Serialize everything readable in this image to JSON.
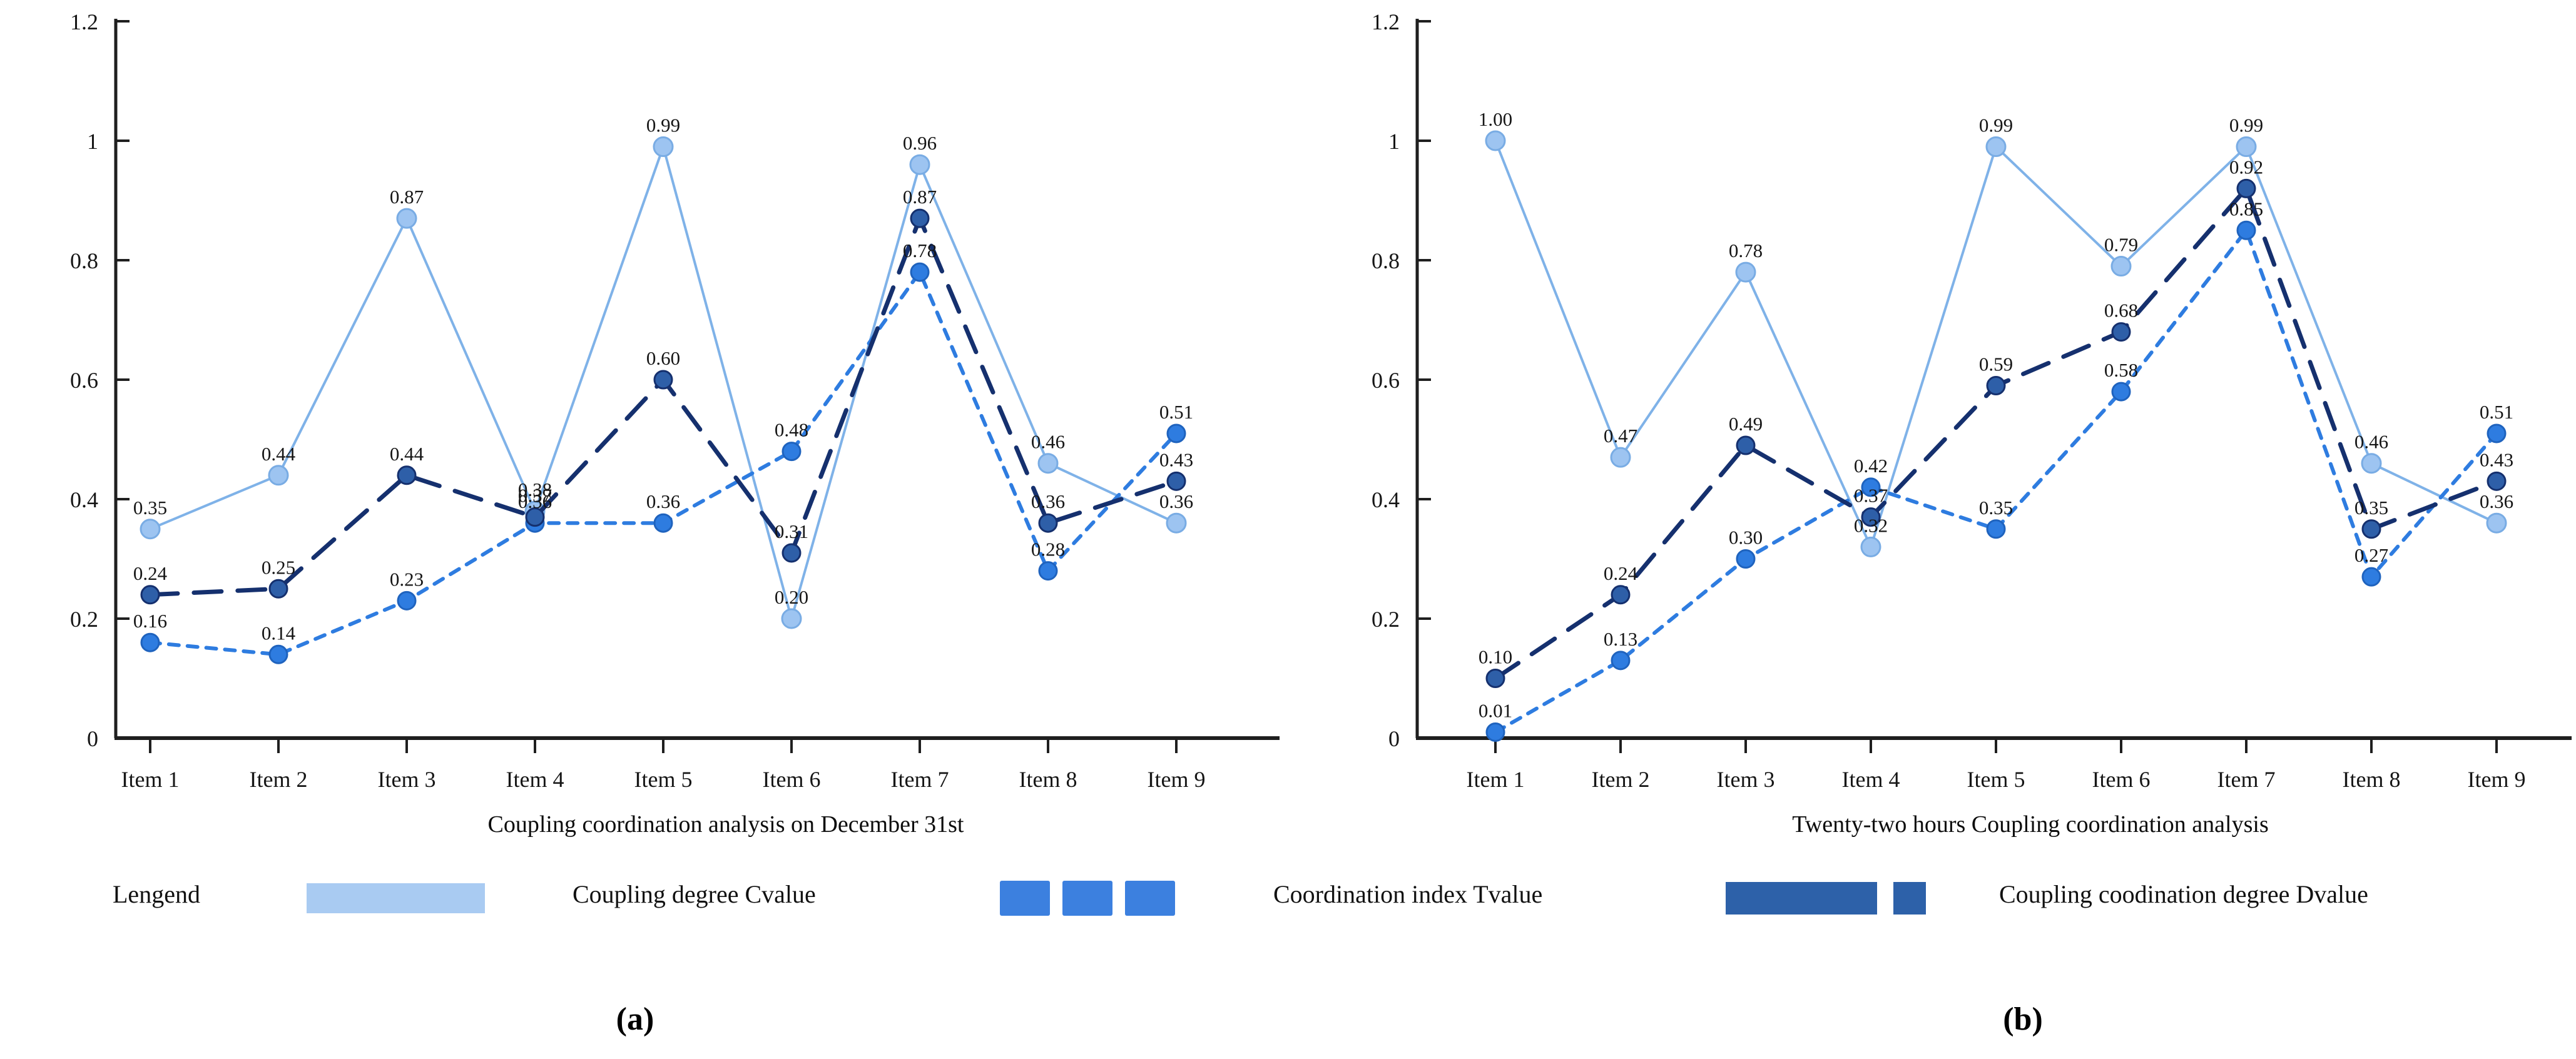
{
  "figure": {
    "panel_a_caption": "(a)",
    "panel_b_caption": "(b)"
  },
  "axis": {
    "ytick_labels": [
      "0",
      "0.2",
      "0.4",
      "0.6",
      "0.8",
      "1",
      "1.2"
    ]
  },
  "legend": {
    "title": "Lengend",
    "entries": [
      {
        "label": "Coupling degree Cvalue",
        "series": "C",
        "swatch": "solid-bar",
        "color": "#A9CBF2"
      },
      {
        "label": "Coordination index Tvalue",
        "series": "T",
        "swatch": "three-dashes",
        "color": "#3C80DF"
      },
      {
        "label": "Coupling coodination degree Dvalue",
        "series": "D",
        "swatch": "long-short-dash",
        "color": "#2D61A9"
      }
    ]
  },
  "chart_data": [
    {
      "id": "a",
      "type": "line",
      "xlabel": "Coupling coordination analysis on December 31st",
      "categories": [
        "Item 1",
        "Item 2",
        "Item 3",
        "Item 4",
        "Item 5",
        "Item 6",
        "Item 7",
        "Item 8",
        "Item 9"
      ],
      "ylim": [
        0,
        1.2
      ],
      "yticks": [
        0,
        0.2,
        0.4,
        0.6,
        0.8,
        1,
        1.2
      ],
      "grid": false,
      "legend_position": "bottom",
      "series": [
        {
          "name": "Coupling degree Cvalue",
          "key": "C",
          "line": "solid",
          "values": [
            0.35,
            0.44,
            0.87,
            0.38,
            0.99,
            0.2,
            0.96,
            0.46,
            0.36
          ]
        },
        {
          "name": "Coordination index Tvalue",
          "key": "T",
          "line": "short-dash",
          "values": [
            0.16,
            0.14,
            0.23,
            0.36,
            0.36,
            0.48,
            0.78,
            0.28,
            0.51
          ]
        },
        {
          "name": "Coupling coodination degree Dvalue",
          "key": "D",
          "line": "long-dash",
          "values": [
            0.24,
            0.25,
            0.44,
            0.37,
            0.6,
            0.31,
            0.87,
            0.36,
            0.43
          ]
        }
      ]
    },
    {
      "id": "b",
      "type": "line",
      "xlabel": "Twenty-two hours Coupling coordination analysis",
      "categories": [
        "Item 1",
        "Item 2",
        "Item 3",
        "Item 4",
        "Item 5",
        "Item 6",
        "Item 7",
        "Item 8",
        "Item 9"
      ],
      "ylim": [
        0,
        1.2
      ],
      "yticks": [
        0,
        0.2,
        0.4,
        0.6,
        0.8,
        1,
        1.2
      ],
      "grid": false,
      "legend_position": "bottom",
      "series": [
        {
          "name": "Coupling degree Cvalue",
          "key": "C",
          "line": "solid",
          "values": [
            1.0,
            0.47,
            0.78,
            0.32,
            0.99,
            0.79,
            0.99,
            0.46,
            0.36
          ]
        },
        {
          "name": "Coordination index Tvalue",
          "key": "T",
          "line": "short-dash",
          "values": [
            0.01,
            0.13,
            0.3,
            0.42,
            0.35,
            0.58,
            0.85,
            0.27,
            0.51
          ]
        },
        {
          "name": "Coupling coodination degree Dvalue",
          "key": "D",
          "line": "long-dash",
          "values": [
            0.1,
            0.24,
            0.49,
            0.37,
            0.59,
            0.68,
            0.92,
            0.35,
            0.43
          ]
        }
      ]
    }
  ],
  "colors": {
    "c_line": "#7FB2E8",
    "c_point": "#9DC4F1",
    "t_line": "#2E7CE0",
    "t_point": "#2E7CE0",
    "d_line": "#15306E",
    "d_point": "#2E5FA8",
    "axis": "#1f1f1f",
    "label_text": "#161616"
  }
}
